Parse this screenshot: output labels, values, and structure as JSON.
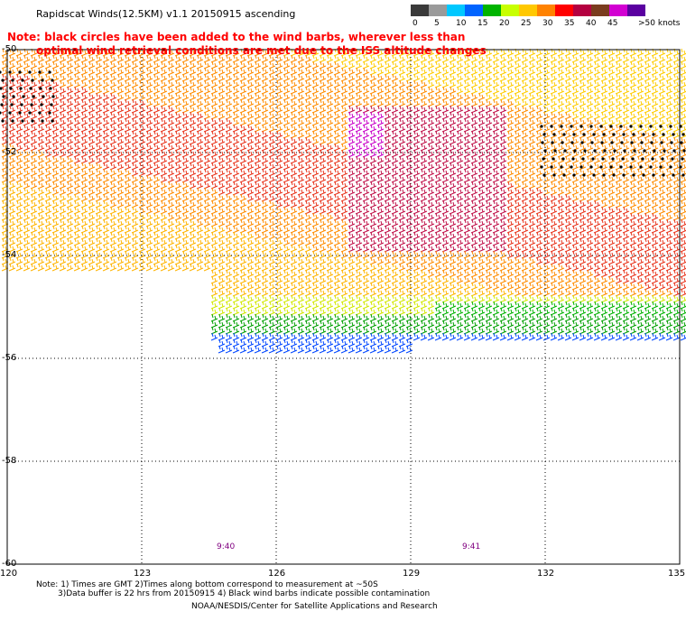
{
  "title": "Rapidscat Winds(12.5KM) v1.1 20150915 ascending",
  "note": {
    "line1": "Note: black circles have been added to the wind barbs, wherever less than",
    "line2": "optimal wind retrieval conditions are met due to the ISS altitude changes"
  },
  "legend": {
    "labels": [
      "0",
      "5",
      "10",
      "15",
      "20",
      "25",
      "30",
      "35",
      "40",
      "45",
      ">50 knots"
    ],
    "colors": [
      "#3a3a3a",
      "#9a9a9a",
      "#00c8ff",
      "#0064ff",
      "#00b400",
      "#c8ff00",
      "#ffc800",
      "#ff8200",
      "#ff0000",
      "#b40040",
      "#7a3c1e",
      "#d200d2",
      "#5a00a0"
    ]
  },
  "axes": {
    "lon_ticks": [
      "120",
      "123",
      "126",
      "129",
      "132",
      "135"
    ],
    "lat_ticks": [
      "-50",
      "-52",
      "-54",
      "-56",
      "-58",
      "-60"
    ],
    "lon_range": [
      120,
      135
    ],
    "lat_range": [
      -60,
      -50
    ]
  },
  "pass_times": [
    "9:40",
    "9:41"
  ],
  "footnotes": {
    "line1": "Note: 1) Times are GMT 2)Times along bottom correspond to measurement at ~50S",
    "line2": "3)Data buffer is 22 hrs from 20150915 4) Black wind barbs indicate possible contamination",
    "credit": "NOAA/NESDIS/Center for Satellite Applications and Research"
  }
}
